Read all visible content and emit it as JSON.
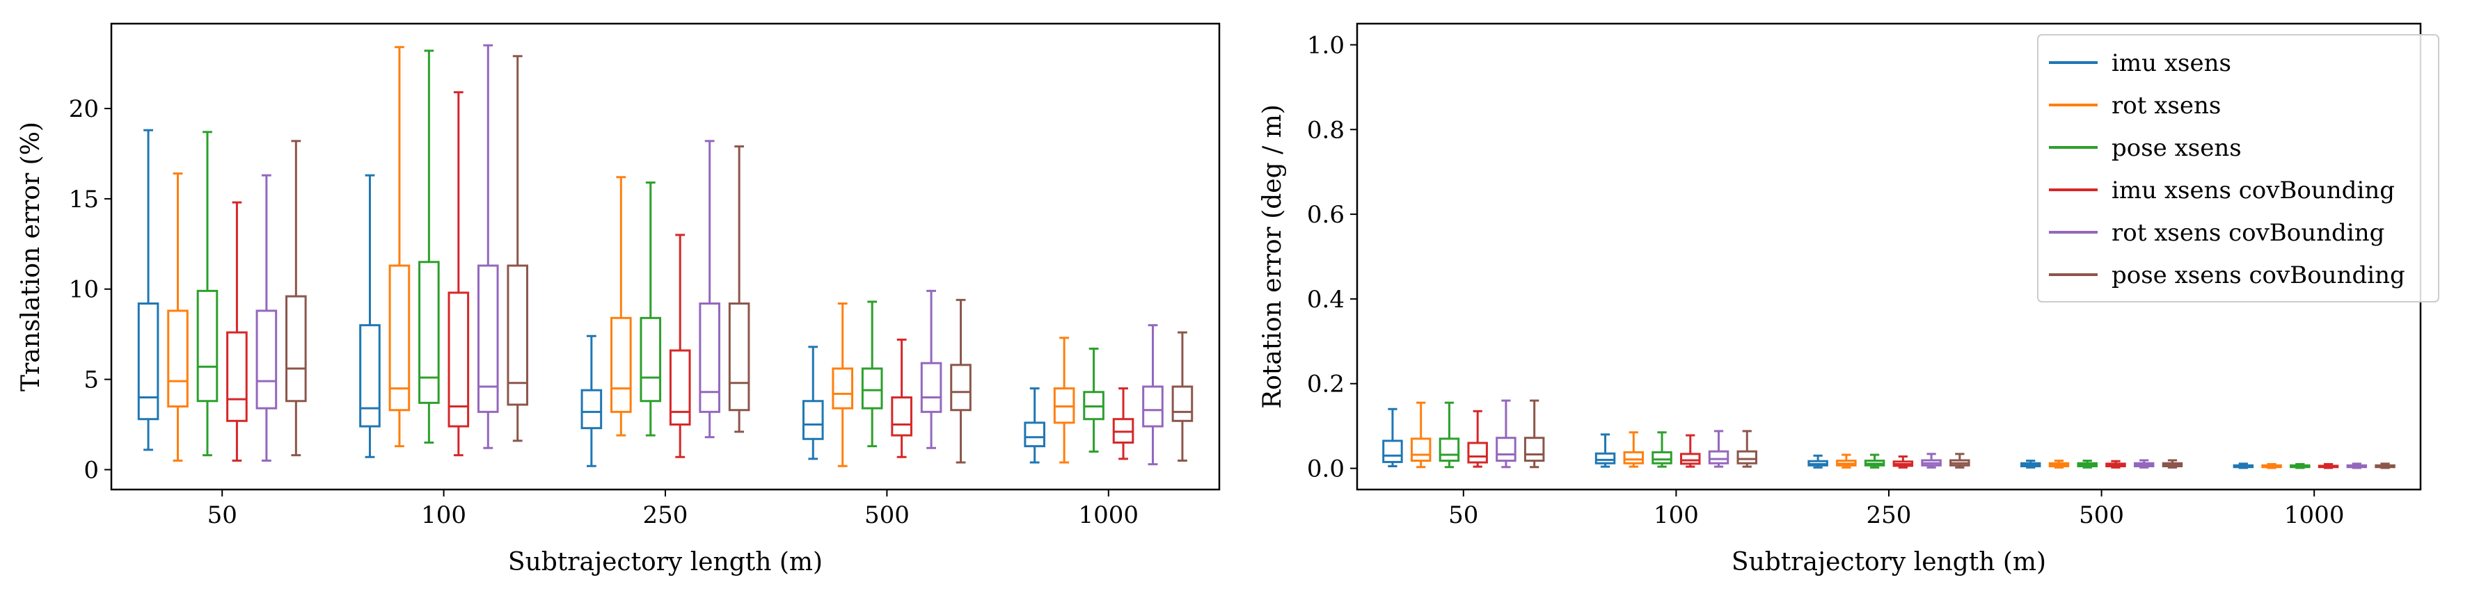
{
  "chart_data": [
    {
      "type": "box",
      "title": "",
      "xlabel": "Subtrajectory length (m)",
      "ylabel": "Translation error (%)",
      "categories": [
        "50",
        "100",
        "250",
        "500",
        "1000"
      ],
      "ylim": [
        -1.1,
        24.7
      ],
      "yticks": [
        0,
        5,
        10,
        15,
        20
      ],
      "grid": false,
      "legend": false,
      "series": [
        {
          "name": "imu xsens",
          "color": "#1f77b4",
          "boxes": [
            {
              "whislo": 1.1,
              "q1": 2.8,
              "med": 4.0,
              "q3": 9.2,
              "whishi": 18.8
            },
            {
              "whislo": 0.7,
              "q1": 2.4,
              "med": 3.4,
              "q3": 8.0,
              "whishi": 16.3
            },
            {
              "whislo": 0.2,
              "q1": 2.3,
              "med": 3.2,
              "q3": 4.4,
              "whishi": 7.4
            },
            {
              "whislo": 0.6,
              "q1": 1.7,
              "med": 2.5,
              "q3": 3.8,
              "whishi": 6.8
            },
            {
              "whislo": 0.4,
              "q1": 1.3,
              "med": 1.8,
              "q3": 2.6,
              "whishi": 4.5
            }
          ]
        },
        {
          "name": "rot xsens",
          "color": "#ff7f0e",
          "boxes": [
            {
              "whislo": 0.5,
              "q1": 3.5,
              "med": 4.9,
              "q3": 8.8,
              "whishi": 16.4
            },
            {
              "whislo": 1.3,
              "q1": 3.3,
              "med": 4.5,
              "q3": 11.3,
              "whishi": 23.4
            },
            {
              "whislo": 1.9,
              "q1": 3.2,
              "med": 4.5,
              "q3": 8.4,
              "whishi": 16.2
            },
            {
              "whislo": 0.2,
              "q1": 3.4,
              "med": 4.2,
              "q3": 5.6,
              "whishi": 9.2
            },
            {
              "whislo": 0.4,
              "q1": 2.6,
              "med": 3.5,
              "q3": 4.5,
              "whishi": 7.3
            }
          ]
        },
        {
          "name": "pose xsens",
          "color": "#2ca02c",
          "boxes": [
            {
              "whislo": 0.8,
              "q1": 3.8,
              "med": 5.7,
              "q3": 9.9,
              "whishi": 18.7
            },
            {
              "whislo": 1.5,
              "q1": 3.7,
              "med": 5.1,
              "q3": 11.5,
              "whishi": 23.2
            },
            {
              "whislo": 1.9,
              "q1": 3.8,
              "med": 5.1,
              "q3": 8.4,
              "whishi": 15.9
            },
            {
              "whislo": 1.3,
              "q1": 3.4,
              "med": 4.4,
              "q3": 5.6,
              "whishi": 9.3
            },
            {
              "whislo": 1.0,
              "q1": 2.8,
              "med": 3.5,
              "q3": 4.3,
              "whishi": 6.7
            }
          ]
        },
        {
          "name": "imu xsens covBounding",
          "color": "#d62728",
          "boxes": [
            {
              "whislo": 0.5,
              "q1": 2.7,
              "med": 3.9,
              "q3": 7.6,
              "whishi": 14.8
            },
            {
              "whislo": 0.8,
              "q1": 2.4,
              "med": 3.5,
              "q3": 9.8,
              "whishi": 20.9
            },
            {
              "whislo": 0.7,
              "q1": 2.5,
              "med": 3.2,
              "q3": 6.6,
              "whishi": 13.0
            },
            {
              "whislo": 0.7,
              "q1": 1.9,
              "med": 2.5,
              "q3": 4.0,
              "whishi": 7.2
            },
            {
              "whislo": 0.6,
              "q1": 1.5,
              "med": 2.1,
              "q3": 2.8,
              "whishi": 4.5
            }
          ]
        },
        {
          "name": "rot xsens covBounding",
          "color": "#9467bd",
          "boxes": [
            {
              "whislo": 0.5,
              "q1": 3.4,
              "med": 4.9,
              "q3": 8.8,
              "whishi": 16.3
            },
            {
              "whislo": 1.2,
              "q1": 3.2,
              "med": 4.6,
              "q3": 11.3,
              "whishi": 23.5
            },
            {
              "whislo": 1.8,
              "q1": 3.2,
              "med": 4.3,
              "q3": 9.2,
              "whishi": 18.2
            },
            {
              "whislo": 1.2,
              "q1": 3.2,
              "med": 4.0,
              "q3": 5.9,
              "whishi": 9.9
            },
            {
              "whislo": 0.3,
              "q1": 2.4,
              "med": 3.3,
              "q3": 4.6,
              "whishi": 8.0
            }
          ]
        },
        {
          "name": "pose xsens covBounding",
          "color": "#8c564b",
          "boxes": [
            {
              "whislo": 0.8,
              "q1": 3.8,
              "med": 5.6,
              "q3": 9.6,
              "whishi": 18.2
            },
            {
              "whislo": 1.6,
              "q1": 3.6,
              "med": 4.8,
              "q3": 11.3,
              "whishi": 22.9
            },
            {
              "whislo": 2.1,
              "q1": 3.3,
              "med": 4.8,
              "q3": 9.2,
              "whishi": 17.9
            },
            {
              "whislo": 0.4,
              "q1": 3.3,
              "med": 4.3,
              "q3": 5.8,
              "whishi": 9.4
            },
            {
              "whislo": 0.5,
              "q1": 2.7,
              "med": 3.2,
              "q3": 4.6,
              "whishi": 7.6
            }
          ]
        }
      ]
    },
    {
      "type": "box",
      "title": "",
      "xlabel": "Subtrajectory length (m)",
      "ylabel": "Rotation error (deg / m)",
      "categories": [
        "50",
        "100",
        "250",
        "500",
        "1000"
      ],
      "ylim": [
        -0.05,
        1.05
      ],
      "yticks": [
        0.0,
        0.2,
        0.4,
        0.6,
        0.8,
        1.0
      ],
      "ytick_labels": [
        "0.0",
        "0.2",
        "0.4",
        "0.6",
        "0.8",
        "1.0"
      ],
      "grid": false,
      "legend": true,
      "legend_loc": "top-right",
      "series": [
        {
          "name": "imu xsens",
          "color": "#1f77b4",
          "boxes": [
            {
              "whislo": 0.005,
              "q1": 0.015,
              "med": 0.03,
              "q3": 0.065,
              "whishi": 0.14
            },
            {
              "whislo": 0.004,
              "q1": 0.012,
              "med": 0.02,
              "q3": 0.035,
              "whishi": 0.08
            },
            {
              "whislo": 0.002,
              "q1": 0.007,
              "med": 0.01,
              "q3": 0.017,
              "whishi": 0.03
            },
            {
              "whislo": 0.002,
              "q1": 0.005,
              "med": 0.008,
              "q3": 0.012,
              "whishi": 0.018
            },
            {
              "whislo": 0.001,
              "q1": 0.003,
              "med": 0.005,
              "q3": 0.007,
              "whishi": 0.011
            }
          ]
        },
        {
          "name": "rot xsens",
          "color": "#ff7f0e",
          "boxes": [
            {
              "whislo": 0.003,
              "q1": 0.018,
              "med": 0.032,
              "q3": 0.07,
              "whishi": 0.155
            },
            {
              "whislo": 0.004,
              "q1": 0.012,
              "med": 0.021,
              "q3": 0.038,
              "whishi": 0.085
            },
            {
              "whislo": 0.002,
              "q1": 0.007,
              "med": 0.011,
              "q3": 0.018,
              "whishi": 0.032
            },
            {
              "whislo": 0.002,
              "q1": 0.005,
              "med": 0.008,
              "q3": 0.012,
              "whishi": 0.018
            },
            {
              "whislo": 0.001,
              "q1": 0.003,
              "med": 0.005,
              "q3": 0.007,
              "whishi": 0.01
            }
          ]
        },
        {
          "name": "pose xsens",
          "color": "#2ca02c",
          "boxes": [
            {
              "whislo": 0.003,
              "q1": 0.018,
              "med": 0.032,
              "q3": 0.07,
              "whishi": 0.155
            },
            {
              "whislo": 0.004,
              "q1": 0.012,
              "med": 0.021,
              "q3": 0.038,
              "whishi": 0.085
            },
            {
              "whislo": 0.002,
              "q1": 0.007,
              "med": 0.011,
              "q3": 0.018,
              "whishi": 0.032
            },
            {
              "whislo": 0.002,
              "q1": 0.005,
              "med": 0.008,
              "q3": 0.012,
              "whishi": 0.018
            },
            {
              "whislo": 0.001,
              "q1": 0.003,
              "med": 0.005,
              "q3": 0.007,
              "whishi": 0.01
            }
          ]
        },
        {
          "name": "imu xsens covBounding",
          "color": "#d62728",
          "boxes": [
            {
              "whislo": 0.004,
              "q1": 0.014,
              "med": 0.028,
              "q3": 0.06,
              "whishi": 0.135
            },
            {
              "whislo": 0.004,
              "q1": 0.011,
              "med": 0.019,
              "q3": 0.034,
              "whishi": 0.078
            },
            {
              "whislo": 0.002,
              "q1": 0.006,
              "med": 0.01,
              "q3": 0.016,
              "whishi": 0.028
            },
            {
              "whislo": 0.002,
              "q1": 0.005,
              "med": 0.007,
              "q3": 0.011,
              "whishi": 0.017
            },
            {
              "whislo": 0.001,
              "q1": 0.003,
              "med": 0.005,
              "q3": 0.006,
              "whishi": 0.01
            }
          ]
        },
        {
          "name": "rot xsens covBounding",
          "color": "#9467bd",
          "boxes": [
            {
              "whislo": 0.003,
              "q1": 0.018,
              "med": 0.033,
              "q3": 0.072,
              "whishi": 0.16
            },
            {
              "whislo": 0.004,
              "q1": 0.012,
              "med": 0.022,
              "q3": 0.04,
              "whishi": 0.088
            },
            {
              "whislo": 0.002,
              "q1": 0.007,
              "med": 0.012,
              "q3": 0.019,
              "whishi": 0.034
            },
            {
              "whislo": 0.002,
              "q1": 0.005,
              "med": 0.008,
              "q3": 0.012,
              "whishi": 0.019
            },
            {
              "whislo": 0.001,
              "q1": 0.003,
              "med": 0.005,
              "q3": 0.007,
              "whishi": 0.011
            }
          ]
        },
        {
          "name": "pose xsens covBounding",
          "color": "#8c564b",
          "boxes": [
            {
              "whislo": 0.003,
              "q1": 0.018,
              "med": 0.033,
              "q3": 0.072,
              "whishi": 0.16
            },
            {
              "whislo": 0.004,
              "q1": 0.012,
              "med": 0.022,
              "q3": 0.04,
              "whishi": 0.088
            },
            {
              "whislo": 0.002,
              "q1": 0.007,
              "med": 0.012,
              "q3": 0.019,
              "whishi": 0.034
            },
            {
              "whislo": 0.002,
              "q1": 0.005,
              "med": 0.008,
              "q3": 0.012,
              "whishi": 0.019
            },
            {
              "whislo": 0.001,
              "q1": 0.003,
              "med": 0.005,
              "q3": 0.007,
              "whishi": 0.011
            }
          ]
        }
      ]
    }
  ]
}
